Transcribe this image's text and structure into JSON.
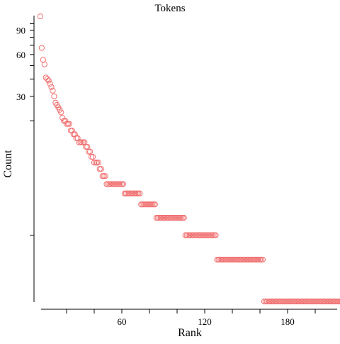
{
  "chart_data": {
    "type": "scatter",
    "title": "Tokens",
    "xlabel": "Rank",
    "ylabel": "Count",
    "x_scale": "linear",
    "y_scale": "log",
    "xlim": [
      0,
      214
    ],
    "ylim": [
      1,
      120
    ],
    "x_ticks_labeled": [
      60,
      120,
      180
    ],
    "x_ticks_minor": [
      20,
      40,
      80,
      100,
      140,
      160,
      200
    ],
    "y_ticks_labeled": [
      30,
      60,
      90
    ],
    "y_ticks_minor": [
      3,
      20,
      40,
      50,
      70,
      80,
      100
    ],
    "marker": "open-circle",
    "marker_color": "#f07070",
    "grid": false,
    "legend": "none",
    "series": [
      {
        "values": [
          113,
          67,
          55,
          51,
          41,
          40,
          39,
          37,
          35,
          33,
          30,
          27,
          26,
          25,
          24,
          23,
          21,
          20,
          20,
          19,
          19,
          19,
          17,
          17,
          16,
          16,
          15,
          15,
          14,
          14,
          14,
          14,
          14,
          13,
          13,
          12,
          12,
          11,
          11,
          10,
          10,
          10,
          10,
          9,
          9,
          8,
          8,
          8,
          7,
          7,
          7,
          7,
          7,
          7,
          7,
          7,
          7,
          7,
          7,
          7,
          7,
          6,
          6,
          6,
          6,
          6,
          6,
          6,
          6,
          6,
          6,
          6,
          6,
          5,
          5,
          5,
          5,
          5,
          5,
          5,
          5,
          5,
          5,
          5,
          4,
          4,
          4,
          4,
          4,
          4,
          4,
          4,
          4,
          4,
          4,
          4,
          4,
          4,
          4,
          4,
          4,
          4,
          4,
          4,
          4,
          3,
          3,
          3,
          3,
          3,
          3,
          3,
          3,
          3,
          3,
          3,
          3,
          3,
          3,
          3,
          3,
          3,
          3,
          3,
          3,
          3,
          3,
          3,
          2,
          2,
          2,
          2,
          2,
          2,
          2,
          2,
          2,
          2,
          2,
          2,
          2,
          2,
          2,
          2,
          2,
          2,
          2,
          2,
          2,
          2,
          2,
          2,
          2,
          2,
          2,
          2,
          2,
          2,
          2,
          2,
          2,
          2,
          1,
          1,
          1,
          1,
          1,
          1,
          1,
          1,
          1,
          1,
          1,
          1,
          1,
          1,
          1,
          1,
          1,
          1,
          1,
          1,
          1,
          1,
          1,
          1,
          1,
          1,
          1,
          1,
          1,
          1,
          1,
          1,
          1,
          1,
          1,
          1,
          1,
          1,
          1,
          1,
          1,
          1,
          1,
          1,
          1,
          1,
          1,
          1,
          1,
          1,
          1,
          1,
          1,
          1,
          1,
          1,
          1,
          1,
          1,
          1
        ]
      }
    ]
  }
}
